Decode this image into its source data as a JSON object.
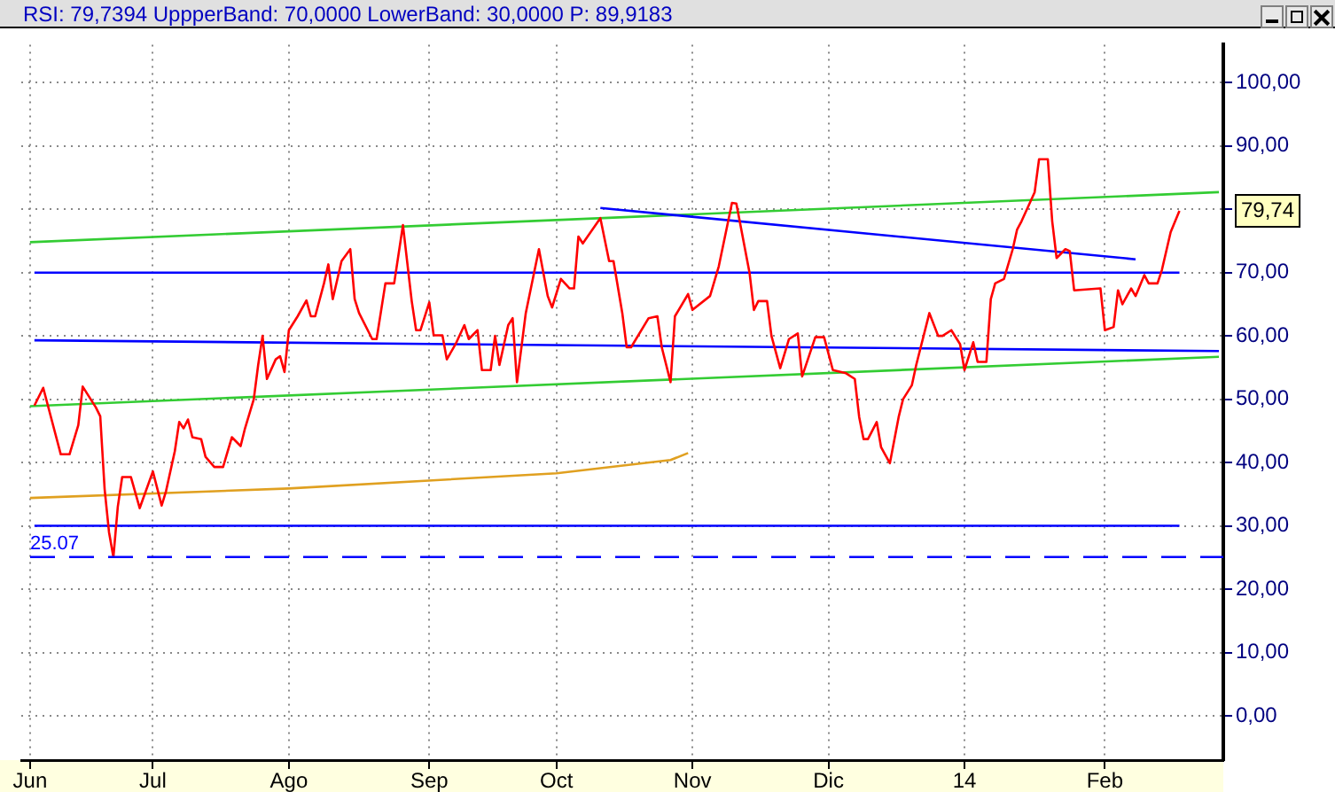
{
  "chart_data": {
    "type": "line",
    "title": "RSI: 79,7394  UppperBand: 70,0000  LowerBand: 30,0000  P: 89,9183",
    "xlim": [
      "2013-06-01",
      "2014-03-02"
    ],
    "xticks": [
      {
        "value": "2013-06-03",
        "label": "Jun"
      },
      {
        "value": "2013-07-01",
        "label": "Jul"
      },
      {
        "value": "2013-08-01",
        "label": "Ago"
      },
      {
        "value": "2013-09-02",
        "label": "Sep"
      },
      {
        "value": "2013-10-01",
        "label": "Oct"
      },
      {
        "value": "2013-11-01",
        "label": "Nov"
      },
      {
        "value": "2013-12-02",
        "label": "Dic"
      },
      {
        "value": "2014-01-02",
        "label": "14"
      },
      {
        "value": "2014-02-03",
        "label": "Feb"
      }
    ],
    "ylim": [
      -7,
      106
    ],
    "yticks": [
      {
        "value": 0,
        "label": "0,00"
      },
      {
        "value": 10,
        "label": "10,00"
      },
      {
        "value": 20,
        "label": "20,00"
      },
      {
        "value": 30,
        "label": "30,00"
      },
      {
        "value": 40,
        "label": "40,00"
      },
      {
        "value": 50,
        "label": "50,00"
      },
      {
        "value": 60,
        "label": "60,00"
      },
      {
        "value": 70,
        "label": "70,00"
      },
      {
        "value": 80,
        "label": null
      },
      {
        "value": 90,
        "label": "90,00"
      },
      {
        "value": 100,
        "label": "100,00"
      }
    ],
    "grid": true,
    "series": [
      {
        "color": "#33cc33",
        "x": [
          "2013-06-03",
          "2014-03-01"
        ],
        "values": [
          74.8,
          82.7
        ]
      },
      {
        "color": "#33cc33",
        "x": [
          "2013-06-03",
          "2014-03-01"
        ],
        "values": [
          48.9,
          56.7
        ]
      },
      {
        "color": "#0000ff",
        "x": [
          "2013-06-04",
          "2014-02-20"
        ],
        "values": [
          70,
          70
        ]
      },
      {
        "color": "#0000ff",
        "x": [
          "2013-06-04",
          "2014-02-20"
        ],
        "values": [
          30,
          30
        ]
      },
      {
        "color": "#0000ff",
        "x": [
          "2013-06-04",
          "2014-03-01"
        ],
        "values": [
          59.3,
          57.6
        ]
      },
      {
        "color": "#0000ff",
        "x": [
          "2013-10-11",
          "2014-02-10"
        ],
        "values": [
          80.2,
          72.1
        ]
      },
      {
        "color": "#e0a020",
        "x": [
          "2013-06-03",
          "2013-08-01",
          "2013-10-01",
          "2013-10-27",
          "2013-10-31"
        ],
        "values": [
          34.4,
          35.9,
          38.3,
          40.4,
          41.5
        ]
      },
      {
        "color": "#ff0000",
        "x": [
          "2013-06-04",
          "2013-06-06",
          "2013-06-10",
          "2013-06-12",
          "2013-06-14",
          "2013-06-15",
          "2013-06-18",
          "2013-06-19",
          "2013-06-20",
          "2013-06-21",
          "2013-06-22",
          "2013-06-23",
          "2013-06-24",
          "2013-06-26",
          "2013-06-28",
          "2013-07-01",
          "2013-07-03",
          "2013-07-04",
          "2013-07-06",
          "2013-07-07",
          "2013-07-08",
          "2013-07-09",
          "2013-07-10",
          "2013-07-12",
          "2013-07-13",
          "2013-07-15",
          "2013-07-17",
          "2013-07-19",
          "2013-07-21",
          "2013-07-22",
          "2013-07-24",
          "2013-07-25",
          "2013-07-26",
          "2013-07-27",
          "2013-07-29",
          "2013-07-30",
          "2013-07-31",
          "2013-08-01",
          "2013-08-03",
          "2013-08-05",
          "2013-08-06",
          "2013-08-07",
          "2013-08-09",
          "2013-08-10",
          "2013-08-11",
          "2013-08-13",
          "2013-08-15",
          "2013-08-16",
          "2013-08-17",
          "2013-08-20",
          "2013-08-21",
          "2013-08-23",
          "2013-08-25",
          "2013-08-27",
          "2013-08-29",
          "2013-08-30",
          "2013-08-31",
          "2013-09-02",
          "2013-09-03",
          "2013-09-05",
          "2013-09-06",
          "2013-09-08",
          "2013-09-10",
          "2013-09-11",
          "2013-09-13",
          "2013-09-14",
          "2013-09-16",
          "2013-09-17",
          "2013-09-18",
          "2013-09-20",
          "2013-09-21",
          "2013-09-22",
          "2013-09-24",
          "2013-09-27",
          "2013-09-29",
          "2013-09-30",
          "2013-10-02",
          "2013-10-04",
          "2013-10-05",
          "2013-10-06",
          "2013-10-07",
          "2013-10-11",
          "2013-10-13",
          "2013-10-14",
          "2013-10-16",
          "2013-10-17",
          "2013-10-18",
          "2013-10-22",
          "2013-10-24",
          "2013-10-25",
          "2013-10-27",
          "2013-10-28",
          "2013-10-31",
          "2013-11-01",
          "2013-11-05",
          "2013-11-07",
          "2013-11-10",
          "2013-11-11",
          "2013-11-14",
          "2013-11-15",
          "2013-11-16",
          "2013-11-18",
          "2013-11-19",
          "2013-11-21",
          "2013-11-23",
          "2013-11-25",
          "2013-11-26",
          "2013-11-29",
          "2013-12-01",
          "2013-12-03",
          "2013-12-06",
          "2013-12-08",
          "2013-12-09",
          "2013-12-10",
          "2013-12-11",
          "2013-12-13",
          "2013-12-14",
          "2013-12-16",
          "2013-12-18",
          "2013-12-19",
          "2013-12-21",
          "2013-12-22",
          "2013-12-25",
          "2013-12-27",
          "2013-12-28",
          "2013-12-30",
          "2014-01-01",
          "2014-01-02",
          "2014-01-04",
          "2014-01-05",
          "2014-01-07",
          "2014-01-08",
          "2014-01-09",
          "2014-01-11",
          "2014-01-13",
          "2014-01-14",
          "2014-01-15",
          "2014-01-18",
          "2014-01-19",
          "2014-01-21",
          "2014-01-22",
          "2014-01-23",
          "2014-01-25",
          "2014-01-26",
          "2014-01-27",
          "2014-02-02",
          "2014-02-03",
          "2014-02-05",
          "2014-02-06",
          "2014-02-07",
          "2014-02-09",
          "2014-02-10",
          "2014-02-12",
          "2014-02-13",
          "2014-02-15",
          "2014-02-16",
          "2014-02-18",
          "2014-02-20"
        ],
        "values": [
          49,
          51.8,
          41.3,
          41.3,
          45.9,
          52,
          48.7,
          47.3,
          35.8,
          29,
          25.07,
          33,
          37.7,
          37.7,
          32.8,
          38.6,
          33.2,
          35.5,
          41.8,
          46.4,
          45.4,
          46.8,
          44,
          43.7,
          40.9,
          39.3,
          39.3,
          44,
          42.6,
          45.4,
          50,
          55.4,
          60,
          53.2,
          56.3,
          56.8,
          54.3,
          60.9,
          63.1,
          65.6,
          63.1,
          63.1,
          68.3,
          71.3,
          65.8,
          71.8,
          73.7,
          65.8,
          63.6,
          59.5,
          59.5,
          68.3,
          68.3,
          77.5,
          65.5,
          60.9,
          60.9,
          65.3,
          60.1,
          60.1,
          56.3,
          58.7,
          61.7,
          59.5,
          60.9,
          54.6,
          54.6,
          60,
          55.4,
          61.7,
          62.8,
          52.7,
          63.6,
          73.7,
          66.3,
          64.5,
          69,
          67.5,
          67.5,
          75.7,
          74.6,
          78.6,
          71.8,
          71.8,
          63.6,
          58.2,
          58.2,
          62.8,
          63.1,
          58.2,
          52.7,
          63.1,
          66.6,
          64.1,
          66.3,
          71,
          81,
          80.9,
          70,
          64.1,
          65.5,
          65.5,
          60,
          54.9,
          59.5,
          60.4,
          53.6,
          59.8,
          59.8,
          54.6,
          54.1,
          53.2,
          47.2,
          43.7,
          43.7,
          46.4,
          42.4,
          39.9,
          47.2,
          50,
          52.2,
          55.4,
          63.6,
          60,
          60,
          60.9,
          58.7,
          54.6,
          59,
          55.9,
          55.9,
          65.8,
          68.3,
          69,
          73.7,
          76.8,
          78.1,
          82.7,
          87.9,
          87.9,
          78.1,
          72.3,
          73.7,
          73.4,
          67.2,
          67.5,
          60.9,
          61.4,
          67.2,
          65,
          67.5,
          66.3,
          69.6,
          68.3,
          68.3,
          70.4,
          76.4,
          79.74
        ]
      }
    ],
    "ref_lines": [
      {
        "axis": "y",
        "value": 25.07,
        "label": "25.07",
        "color": "#0000ff",
        "line_style": "dashed"
      }
    ],
    "annotations": [
      {
        "text": "79,74",
        "x": "2014-02-20",
        "y": 79.74
      }
    ]
  }
}
